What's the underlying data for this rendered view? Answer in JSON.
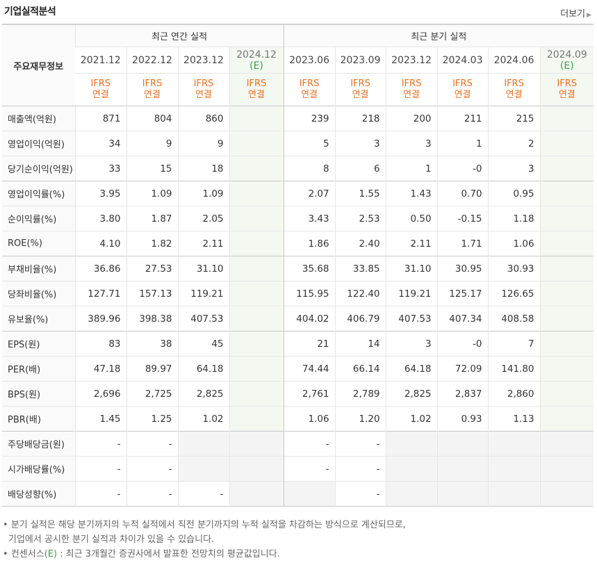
{
  "title": "기업실적분석",
  "more_label": "더보기",
  "corner_label": "주요재무정보",
  "groups": {
    "annual": "최근 연간 실적",
    "quarterly": "최근 분기 실적"
  },
  "annual_periods": [
    "2021.12",
    "2022.12",
    "2023.12",
    "2024.12"
  ],
  "annual_est_suffix": "(E)",
  "quarter_periods": [
    "2023.06",
    "2023.09",
    "2023.12",
    "2024.03",
    "2024.06",
    "2024.09"
  ],
  "quarter_est_suffix": "(E)",
  "ifrs_line1": "IFRS",
  "ifrs_line2": "연결",
  "rows": [
    {
      "label": "매출액(억원)",
      "values": [
        "871",
        "804",
        "860",
        "",
        "239",
        "218",
        "200",
        "211",
        "215",
        ""
      ]
    },
    {
      "label": "영업이익(억원)",
      "values": [
        "34",
        "9",
        "9",
        "",
        "5",
        "3",
        "3",
        "1",
        "2",
        ""
      ]
    },
    {
      "label": "당기순이익(억원)",
      "values": [
        "33",
        "15",
        "18",
        "",
        "8",
        "6",
        "1",
        "-0",
        "3",
        ""
      ]
    },
    {
      "label": "영업이익률(%)",
      "values": [
        "3.95",
        "1.09",
        "1.09",
        "",
        "2.07",
        "1.55",
        "1.43",
        "0.70",
        "0.95",
        ""
      ]
    },
    {
      "label": "순이익률(%)",
      "values": [
        "3.80",
        "1.87",
        "2.05",
        "",
        "3.43",
        "2.53",
        "0.50",
        "-0.15",
        "1.18",
        ""
      ]
    },
    {
      "label": "ROE(%)",
      "values": [
        "4.10",
        "1.82",
        "2.11",
        "",
        "1.86",
        "2.40",
        "2.11",
        "1.71",
        "1.06",
        ""
      ]
    },
    {
      "label": "부채비율(%)",
      "values": [
        "36.86",
        "27.53",
        "31.10",
        "",
        "35.68",
        "33.85",
        "31.10",
        "30.95",
        "30.93",
        ""
      ]
    },
    {
      "label": "당좌비율(%)",
      "values": [
        "127.71",
        "157.13",
        "119.21",
        "",
        "115.95",
        "122.40",
        "119.21",
        "125.17",
        "126.65",
        ""
      ]
    },
    {
      "label": "유보율(%)",
      "values": [
        "389.96",
        "398.38",
        "407.53",
        "",
        "404.02",
        "406.79",
        "407.53",
        "407.34",
        "408.58",
        ""
      ]
    },
    {
      "label": "EPS(원)",
      "values": [
        "83",
        "38",
        "45",
        "",
        "21",
        "14",
        "3",
        "-0",
        "7",
        ""
      ]
    },
    {
      "label": "PER(배)",
      "values": [
        "47.18",
        "89.97",
        "64.18",
        "",
        "74.44",
        "66.14",
        "64.18",
        "72.09",
        "141.80",
        ""
      ]
    },
    {
      "label": "BPS(원)",
      "values": [
        "2,696",
        "2,725",
        "2,825",
        "",
        "2,761",
        "2,789",
        "2,825",
        "2,837",
        "2,860",
        ""
      ]
    },
    {
      "label": "PBR(배)",
      "values": [
        "1.45",
        "1.25",
        "1.02",
        "",
        "1.06",
        "1.20",
        "1.02",
        "0.93",
        "1.13",
        ""
      ]
    },
    {
      "label": "주당배당금(원)",
      "values": [
        "-",
        "-",
        "",
        "",
        "-",
        "-",
        "",
        "",
        "",
        ""
      ]
    },
    {
      "label": "시가배당률(%)",
      "values": [
        "-",
        "-",
        "",
        "",
        "-",
        "-",
        "",
        "",
        "",
        ""
      ]
    },
    {
      "label": "배당성향(%)",
      "values": [
        "-",
        "-",
        "-",
        "",
        "",
        "-",
        "",
        "",
        "",
        ""
      ]
    }
  ],
  "notes": {
    "line1": "분기 실적은 해당 분기까지의 누적 실적에서 직전 분기까지의 누적 실적을 차감하는 방식으로 계산되므로,",
    "line2": "기업에서 공시한 분기 실적과 차이가 있을 수 있습니다.",
    "line3_a": "컨센서스",
    "line3_e": "(E)",
    "line3_b": ": 최근 3개월간 증권사에서 발표한 전망치의 평균값입니다."
  }
}
